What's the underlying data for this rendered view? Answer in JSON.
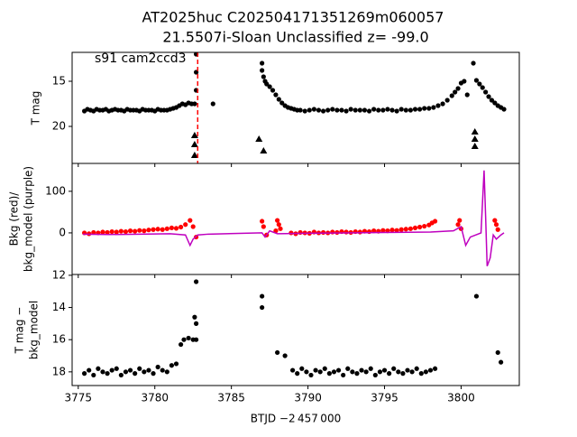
{
  "chart_data": [
    {
      "type": "scatter",
      "title": "AT2025huc  C202504171351269m060057",
      "subtitle": "21.5507i-Sloan Unclassified z= -99.0",
      "ylabel": [
        "T mag"
      ],
      "annotation": "s91 cam2ccd3",
      "xlim": [
        3774.6,
        3803.8
      ],
      "ylim": [
        24.1,
        11.8
      ],
      "yticks": [
        15,
        20
      ],
      "vline": 3782.8,
      "vline_color": "#ff0000",
      "series": [
        {
          "marker": "o",
          "color": "#000000",
          "x": [
            3775.4,
            3775.6,
            3775.8,
            3776.0,
            3776.2,
            3776.4,
            3776.6,
            3776.8,
            3777.0,
            3777.2,
            3777.4,
            3777.6,
            3777.8,
            3778.0,
            3778.2,
            3778.4,
            3778.6,
            3778.8,
            3779.0,
            3779.2,
            3779.4,
            3779.6,
            3779.8,
            3780.0,
            3780.2,
            3780.4,
            3780.6,
            3780.8,
            3781.0,
            3781.2,
            3781.4,
            3781.6,
            3781.8,
            3782.0,
            3782.2,
            3782.4,
            3782.6,
            3782.7,
            3782.7,
            3782.7,
            3783.8,
            3787.0,
            3787.0,
            3787.1,
            3787.2,
            3787.3,
            3787.5,
            3787.7,
            3787.9,
            3788.1,
            3788.3,
            3788.5,
            3788.7,
            3788.9,
            3789.1,
            3789.3,
            3789.5,
            3789.8,
            3790.1,
            3790.4,
            3790.7,
            3791.0,
            3791.3,
            3791.6,
            3791.9,
            3792.2,
            3792.5,
            3792.8,
            3793.1,
            3793.4,
            3793.7,
            3794.0,
            3794.3,
            3794.6,
            3794.9,
            3795.2,
            3795.5,
            3795.8,
            3796.1,
            3796.4,
            3796.7,
            3797.0,
            3797.3,
            3797.6,
            3797.9,
            3798.2,
            3798.5,
            3798.8,
            3799.1,
            3799.4,
            3799.6,
            3799.8,
            3800.0,
            3800.2,
            3800.4,
            3800.8,
            3801.0,
            3801.2,
            3801.4,
            3801.6,
            3801.8,
            3802.0,
            3802.2,
            3802.4,
            3802.6,
            3802.8
          ],
          "values": [
            18.3,
            18.1,
            18.2,
            18.3,
            18.1,
            18.2,
            18.2,
            18.1,
            18.3,
            18.2,
            18.1,
            18.2,
            18.2,
            18.3,
            18.1,
            18.2,
            18.2,
            18.2,
            18.3,
            18.1,
            18.2,
            18.2,
            18.2,
            18.3,
            18.1,
            18.2,
            18.2,
            18.2,
            18.1,
            18.0,
            17.9,
            17.7,
            17.5,
            17.6,
            17.4,
            17.5,
            17.5,
            12.0,
            14.0,
            16.0,
            17.5,
            13.0,
            13.8,
            14.5,
            15.0,
            15.3,
            15.6,
            16.0,
            16.5,
            17.0,
            17.4,
            17.7,
            17.9,
            18.0,
            18.1,
            18.2,
            18.2,
            18.3,
            18.2,
            18.1,
            18.2,
            18.3,
            18.2,
            18.1,
            18.2,
            18.2,
            18.3,
            18.1,
            18.2,
            18.2,
            18.2,
            18.3,
            18.1,
            18.2,
            18.2,
            18.1,
            18.2,
            18.3,
            18.1,
            18.2,
            18.2,
            18.1,
            18.1,
            18.0,
            18.0,
            17.9,
            17.7,
            17.5,
            17.1,
            16.6,
            16.2,
            15.8,
            15.2,
            15.0,
            16.5,
            13.0,
            14.9,
            15.3,
            15.7,
            16.2,
            16.7,
            17.1,
            17.4,
            17.7,
            17.9,
            18.1
          ]
        },
        {
          "marker": "^",
          "color": "#000000",
          "x": [
            3782.6,
            3782.6,
            3782.6,
            3786.8,
            3787.1,
            3800.9,
            3800.9,
            3800.9
          ],
          "values": [
            21.0,
            22.0,
            23.2,
            21.4,
            22.7,
            20.6,
            21.4,
            22.2
          ]
        }
      ]
    },
    {
      "type": "scatter",
      "ylabel": [
        "Bkg (red)/",
        "bkg_model (purple)"
      ],
      "xlim": [
        3774.6,
        3803.8
      ],
      "ylim": [
        -100,
        167
      ],
      "yticks": [
        0,
        100
      ],
      "series": [
        {
          "marker": "o",
          "color": "#ff0000",
          "x": [
            3775.4,
            3775.7,
            3776.0,
            3776.3,
            3776.6,
            3776.9,
            3777.2,
            3777.5,
            3777.8,
            3778.1,
            3778.4,
            3778.7,
            3779.0,
            3779.3,
            3779.6,
            3779.9,
            3780.2,
            3780.5,
            3780.8,
            3781.1,
            3781.4,
            3781.7,
            3782.0,
            3782.3,
            3782.5,
            3782.7,
            3787.0,
            3787.1,
            3787.3,
            3787.9,
            3788.0,
            3788.1,
            3788.2,
            3788.9,
            3789.2,
            3789.5,
            3789.8,
            3790.1,
            3790.4,
            3790.7,
            3791.0,
            3791.3,
            3791.6,
            3791.9,
            3792.2,
            3792.5,
            3792.8,
            3793.1,
            3793.4,
            3793.7,
            3794.0,
            3794.3,
            3794.6,
            3794.9,
            3795.2,
            3795.5,
            3795.8,
            3796.1,
            3796.4,
            3796.7,
            3797.0,
            3797.3,
            3797.6,
            3797.9,
            3798.1,
            3798.3,
            3799.8,
            3799.9,
            3800.0,
            3802.2,
            3802.3,
            3802.4
          ],
          "values": [
            0,
            -2,
            1,
            0,
            2,
            1,
            3,
            2,
            4,
            3,
            5,
            4,
            6,
            5,
            7,
            8,
            9,
            8,
            10,
            12,
            11,
            14,
            20,
            30,
            15,
            -10,
            28,
            15,
            -5,
            5,
            30,
            20,
            10,
            0,
            -2,
            1,
            0,
            -1,
            2,
            0,
            1,
            0,
            2,
            1,
            3,
            2,
            1,
            3,
            2,
            4,
            3,
            5,
            4,
            6,
            5,
            7,
            6,
            8,
            9,
            10,
            12,
            14,
            16,
            19,
            24,
            28,
            20,
            30,
            10,
            30,
            20,
            8
          ]
        },
        {
          "marker": "line",
          "color": "#bf00bf",
          "x": [
            3775.3,
            3777.0,
            3779.0,
            3781.0,
            3782.0,
            3782.3,
            3782.5,
            3782.8,
            3783.5,
            3787.0,
            3787.2,
            3787.5,
            3788.0,
            3790.0,
            3795.0,
            3798.0,
            3799.5,
            3800.0,
            3800.3,
            3800.6,
            3801.3,
            3801.5,
            3801.6,
            3801.7,
            3801.9,
            3802.1,
            3802.3,
            3802.6,
            3802.8
          ],
          "values": [
            -3,
            -4,
            -3,
            -2,
            -5,
            -30,
            -15,
            -5,
            -3,
            0,
            -10,
            5,
            -2,
            -1,
            1,
            2,
            5,
            15,
            -30,
            -10,
            0,
            150,
            40,
            -80,
            -60,
            -5,
            -15,
            -5,
            0
          ]
        }
      ]
    },
    {
      "type": "scatter",
      "ylabel": [
        "T mag −",
        "bkg_model"
      ],
      "xlabel": "BTJD −2 457 000",
      "xlim": [
        3774.6,
        3803.8
      ],
      "ylim": [
        18.85,
        11.95
      ],
      "xticks": [
        3775,
        3780,
        3785,
        3790,
        3795,
        3800
      ],
      "yticks": [
        12,
        14,
        16,
        18
      ],
      "series": [
        {
          "marker": "o",
          "color": "#000000",
          "x": [
            3775.4,
            3775.7,
            3776.0,
            3776.3,
            3776.6,
            3776.9,
            3777.2,
            3777.5,
            3777.8,
            3778.1,
            3778.4,
            3778.7,
            3779.0,
            3779.3,
            3779.6,
            3779.9,
            3780.2,
            3780.5,
            3780.8,
            3781.1,
            3781.4,
            3781.7,
            3781.9,
            3782.2,
            3782.5,
            3782.6,
            3782.7,
            3782.7,
            3782.7,
            3787.0,
            3787.0,
            3788.0,
            3788.5,
            3789.0,
            3789.3,
            3789.6,
            3789.9,
            3790.2,
            3790.5,
            3790.8,
            3791.1,
            3791.4,
            3791.7,
            3792.0,
            3792.3,
            3792.6,
            3792.9,
            3793.2,
            3793.5,
            3793.8,
            3794.1,
            3794.4,
            3794.7,
            3795.0,
            3795.3,
            3795.6,
            3795.9,
            3796.2,
            3796.5,
            3796.8,
            3797.1,
            3797.4,
            3797.7,
            3798.0,
            3798.3,
            3801.0,
            3802.4,
            3802.6
          ],
          "values": [
            18.1,
            17.9,
            18.2,
            17.8,
            18.0,
            18.1,
            17.9,
            17.8,
            18.2,
            18.0,
            17.9,
            18.1,
            17.8,
            18.0,
            17.9,
            18.1,
            17.7,
            17.9,
            18.0,
            17.6,
            17.5,
            16.3,
            16.0,
            15.9,
            16.0,
            14.6,
            12.4,
            15.0,
            16.0,
            13.3,
            14.0,
            16.8,
            17.0,
            17.9,
            18.1,
            17.8,
            18.0,
            18.2,
            17.9,
            18.0,
            17.8,
            18.1,
            18.0,
            17.9,
            18.2,
            17.8,
            18.0,
            18.1,
            17.9,
            18.0,
            17.8,
            18.2,
            18.0,
            17.9,
            18.1,
            17.8,
            18.0,
            18.1,
            17.9,
            18.0,
            17.8,
            18.1,
            18.0,
            17.9,
            17.8,
            13.3,
            16.8,
            17.4
          ]
        }
      ]
    }
  ]
}
